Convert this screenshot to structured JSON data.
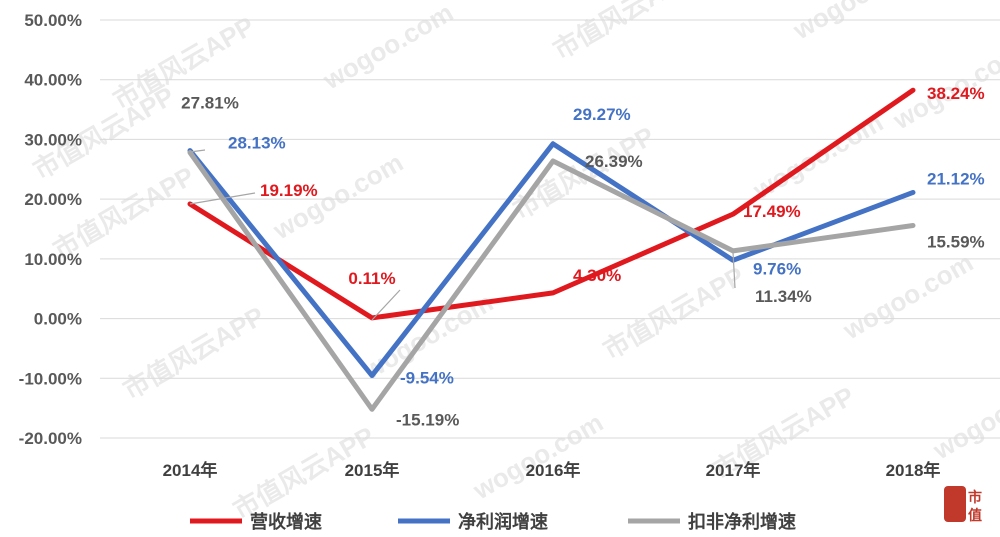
{
  "chart_data": {
    "type": "line",
    "categories": [
      "2014年",
      "2015年",
      "2016年",
      "2017年",
      "2018年"
    ],
    "ylim": [
      -20,
      50
    ],
    "yticks": [
      -20,
      -10,
      0,
      10,
      20,
      30,
      40,
      50
    ],
    "ytick_labels": [
      "-20.00%",
      "-10.00%",
      "0.00%",
      "10.00%",
      "20.00%",
      "30.00%",
      "40.00%",
      "50.00%"
    ],
    "grid": true,
    "legend_position": "bottom",
    "series": [
      {
        "name": "营收增速",
        "color": "#e0191f",
        "values": [
          19.19,
          0.11,
          4.3,
          17.49,
          38.24
        ],
        "labels": [
          "19.19%",
          "0.11%",
          "4.30%",
          "17.49%",
          "38.24%"
        ]
      },
      {
        "name": "净利润增速",
        "color": "#4472c4",
        "values": [
          28.13,
          -9.54,
          29.27,
          9.76,
          21.12
        ],
        "labels": [
          "28.13%",
          "-9.54%",
          "29.27%",
          "9.76%",
          "21.12%"
        ]
      },
      {
        "name": "扣非净利增速",
        "color": "#a5a5a5",
        "values": [
          27.81,
          -15.19,
          26.39,
          11.34,
          15.59
        ],
        "labels": [
          "27.81%",
          "-15.19%",
          "26.39%",
          "11.34%",
          "15.59%"
        ]
      }
    ],
    "label_colors": [
      "#e0191f",
      "#4472c4",
      "#595959"
    ]
  },
  "watermark": {
    "text_cn": "市值风云APP",
    "text_en": "wogoo.com",
    "logo_text": "市值",
    "logo_color": "#c0392b"
  }
}
